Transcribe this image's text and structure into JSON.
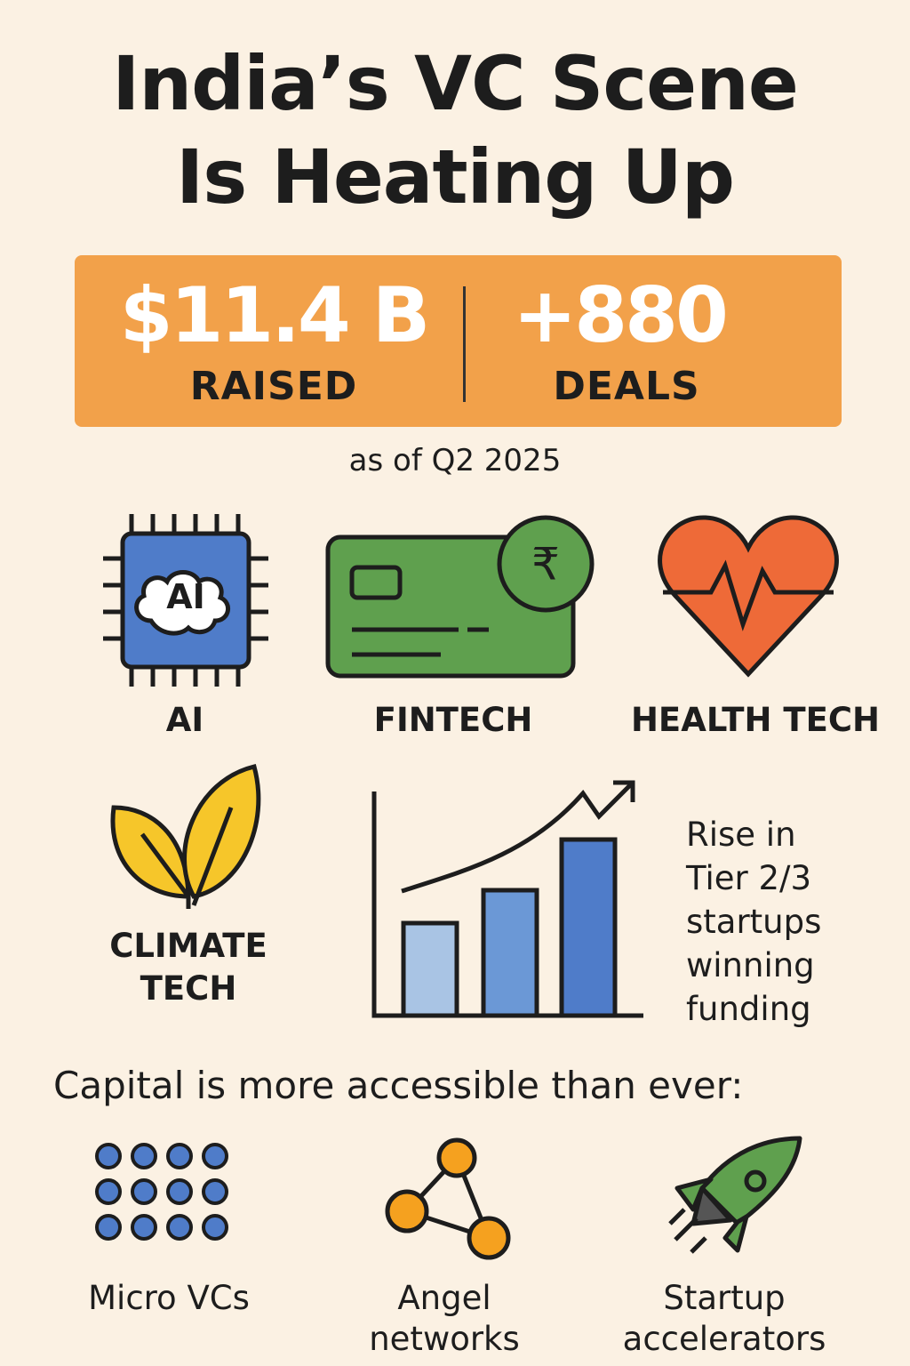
{
  "title_lines": [
    "India’s VC Scene",
    "Is Heating Up"
  ],
  "stats": [
    {
      "value": "$11.4 B",
      "label": "RAISED"
    },
    {
      "value": "+880",
      "label": "DEALS"
    }
  ],
  "as_of": "as of Q2 2025",
  "sectors": [
    {
      "icon_text": "AI",
      "label": "AI"
    },
    {
      "icon_text": "₹",
      "label": "FINTECH"
    },
    {
      "label": "HEALTH TECH"
    },
    {
      "label": "CLIMATE TECH"
    }
  ],
  "trend_caption": "Rise in Tier 2/3 startups winning funding",
  "capital_heading": "Capital is more accessible than ever:",
  "capital_sources": [
    "Micro VCs",
    "Angel networks",
    "Startup accelerators"
  ]
}
